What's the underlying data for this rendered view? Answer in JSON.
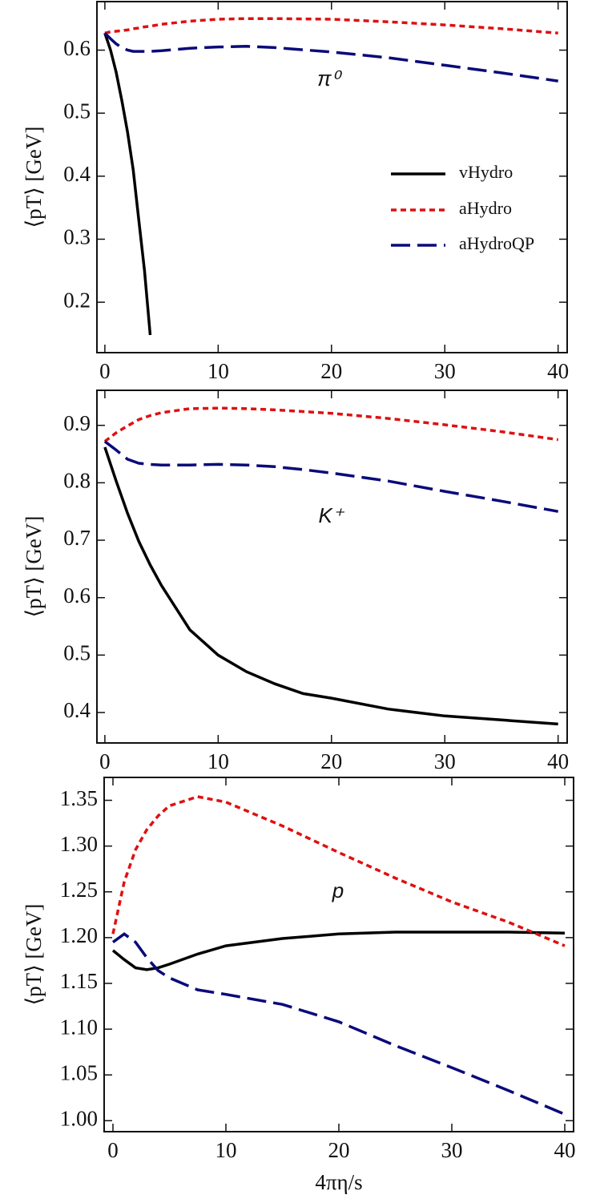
{
  "chart_data": [
    {
      "type": "line",
      "annotation": "π⁰",
      "ylabel": "⟨pT⟩ [GeV]",
      "legend": "right",
      "x": [
        0,
        0.5,
        1,
        1.5,
        2,
        2.5,
        3,
        3.5,
        4,
        5,
        7.5,
        10,
        12.5,
        15,
        20,
        25,
        30,
        35,
        40
      ],
      "series": [
        {
          "name": "vHydro",
          "color": "#000000",
          "values": [
            0.627,
            0.6,
            0.565,
            0.52,
            0.47,
            0.41,
            0.33,
            0.25,
            0.148,
            null,
            null,
            null,
            null,
            null,
            null,
            null,
            null,
            null,
            null
          ]
        },
        {
          "name": "aHydro",
          "color": "#dd1111",
          "values": [
            0.627,
            0.629,
            0.63,
            0.631,
            0.632,
            0.634,
            0.635,
            0.637,
            0.638,
            0.641,
            0.646,
            0.649,
            0.65,
            0.65,
            0.649,
            0.645,
            0.64,
            0.634,
            0.627
          ]
        },
        {
          "name": "aHydroQP",
          "color": "#0a0a7a",
          "values": [
            0.627,
            0.618,
            0.61,
            0.604,
            0.6,
            0.598,
            0.598,
            0.598,
            0.598,
            0.599,
            0.603,
            0.605,
            0.606,
            0.604,
            0.597,
            0.588,
            0.576,
            0.564,
            0.551
          ]
        }
      ],
      "xlim": [
        -0.7,
        40.8
      ],
      "ylim": [
        0.12,
        0.677
      ],
      "xticks": [
        0,
        10,
        20,
        30,
        40
      ],
      "yticks": [
        0.2,
        0.3,
        0.4,
        0.5,
        0.6
      ]
    },
    {
      "type": "line",
      "annotation": "K⁺",
      "ylabel": "⟨pT⟩ [GeV]",
      "x": [
        0,
        1,
        2,
        3,
        4,
        5,
        7.5,
        10,
        12.5,
        15,
        17.5,
        20,
        25,
        30,
        35,
        40
      ],
      "series": [
        {
          "color": "#000000",
          "values": [
            0.862,
            0.803,
            0.747,
            0.698,
            0.657,
            0.621,
            0.544,
            0.5,
            0.471,
            0.45,
            0.433,
            0.425,
            0.406,
            0.394,
            0.387,
            0.38
          ]
        },
        {
          "color": "#dd1111",
          "values": [
            0.872,
            0.887,
            0.899,
            0.91,
            0.917,
            0.922,
            0.929,
            0.93,
            0.929,
            0.927,
            0.924,
            0.921,
            0.912,
            0.901,
            0.889,
            0.875
          ]
        },
        {
          "color": "#0a0a7a",
          "values": [
            0.872,
            0.857,
            0.841,
            0.834,
            0.832,
            0.831,
            0.831,
            0.832,
            0.831,
            0.828,
            0.823,
            0.817,
            0.803,
            0.785,
            0.768,
            0.75
          ]
        }
      ],
      "xlim": [
        -0.7,
        40.8
      ],
      "ylim": [
        0.347,
        0.961
      ],
      "xticks": [
        0,
        10,
        20,
        30,
        40
      ],
      "yticks": [
        0.4,
        0.5,
        0.6,
        0.7,
        0.8,
        0.9
      ]
    },
    {
      "type": "line",
      "annotation": "p",
      "ylabel": "⟨pT⟩ [GeV]",
      "xlabel": "4πη/s",
      "x": [
        0,
        1,
        2,
        3,
        4,
        5,
        7.5,
        10,
        15,
        20,
        25,
        30,
        35,
        40
      ],
      "series": [
        {
          "color": "#000000",
          "values": [
            1.186,
            1.176,
            1.167,
            1.165,
            1.167,
            1.171,
            1.182,
            1.191,
            1.199,
            1.204,
            1.206,
            1.206,
            1.206,
            1.205
          ]
        },
        {
          "color": "#dd1111",
          "values": [
            1.204,
            1.261,
            1.296,
            1.318,
            1.333,
            1.344,
            1.354,
            1.348,
            1.322,
            1.293,
            1.265,
            1.239,
            1.217,
            1.191
          ]
        },
        {
          "color": "#0a0a7a",
          "values": [
            1.195,
            1.204,
            1.195,
            1.178,
            1.164,
            1.156,
            1.143,
            1.138,
            1.127,
            1.108,
            1.082,
            1.058,
            1.033,
            1.007
          ]
        }
      ],
      "xlim": [
        -0.78,
        40.78
      ],
      "ylim": [
        0.988,
        1.375
      ],
      "xticks": [
        0,
        10,
        20,
        30,
        40
      ],
      "yticks": [
        {
          "value": 1,
          "label": "1.00"
        },
        1.05,
        {
          "value": 1.1,
          "label": "1.10"
        },
        1.15,
        {
          "value": 1.2,
          "label": "1.20"
        },
        1.25,
        {
          "value": 1.3,
          "label": "1.30"
        },
        1.35
      ]
    }
  ]
}
